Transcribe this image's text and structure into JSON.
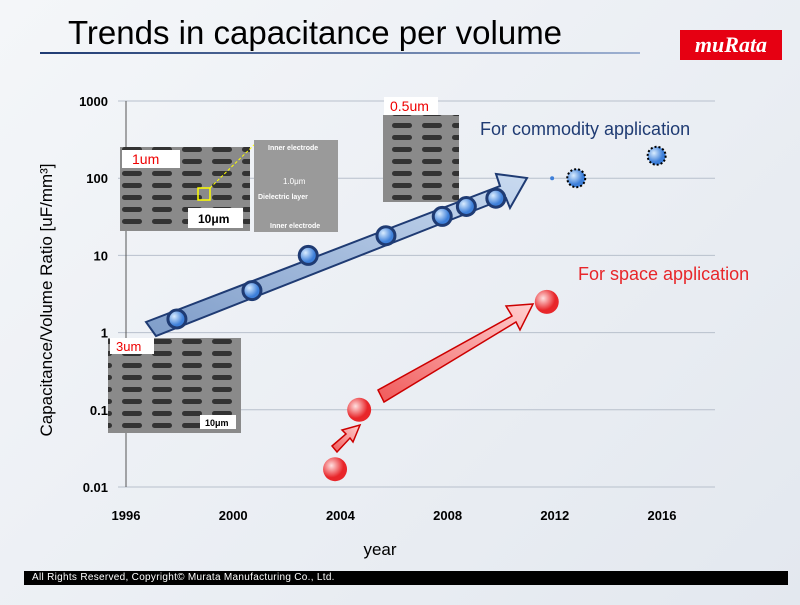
{
  "slide": {
    "title": "Trends in capacitance per volume",
    "logo": "muRata",
    "footer": "All Rights Reserved, Copyright© Murata Manufacturing Co., Ltd."
  },
  "chart_data": {
    "type": "scatter",
    "title": "",
    "xlabel": "year",
    "ylabel": "Capacitance/Volume Ratio [uF/mm³]",
    "xlim": [
      1996,
      2018
    ],
    "ylim": [
      0.01,
      1000
    ],
    "yscale": "log",
    "xticks": [
      1996,
      2000,
      2004,
      2008,
      2012,
      2016
    ],
    "yticks": [
      {
        "v": 0.01,
        "l": "0.01"
      },
      {
        "v": 0.1,
        "l": "0.1"
      },
      {
        "v": 1,
        "l": "1"
      },
      {
        "v": 10,
        "l": "10"
      },
      {
        "v": 100,
        "l": "100"
      },
      {
        "v": 1000,
        "l": "1000"
      }
    ],
    "grid": true,
    "series": [
      {
        "name": "For  commodity application",
        "color": "#3d7fd9",
        "points": [
          [
            1997.9,
            1.5
          ],
          [
            2000.7,
            3.5
          ],
          [
            2002.8,
            10
          ],
          [
            2005.7,
            18
          ],
          [
            2007.8,
            32
          ],
          [
            2008.7,
            43
          ],
          [
            2009.8,
            55
          ]
        ],
        "projected": [
          [
            2012.8,
            100
          ],
          [
            2015.8,
            195
          ]
        ]
      },
      {
        "name": "For space application",
        "color": "#e8262a",
        "points": [
          [
            2003.8,
            0.017
          ],
          [
            2004.7,
            0.1
          ],
          [
            2011.7,
            2.5
          ]
        ]
      }
    ],
    "annotations": {
      "img1": "1um",
      "img1_scale": "10μm",
      "inset_top": "Inner electrode",
      "inset_mid": "1.0μm",
      "inset_dl": "Dielectric layer",
      "inset_bot": "Inner electrode",
      "img2": "0.5um",
      "img3": "3um",
      "img3_scale": "10μm"
    }
  }
}
